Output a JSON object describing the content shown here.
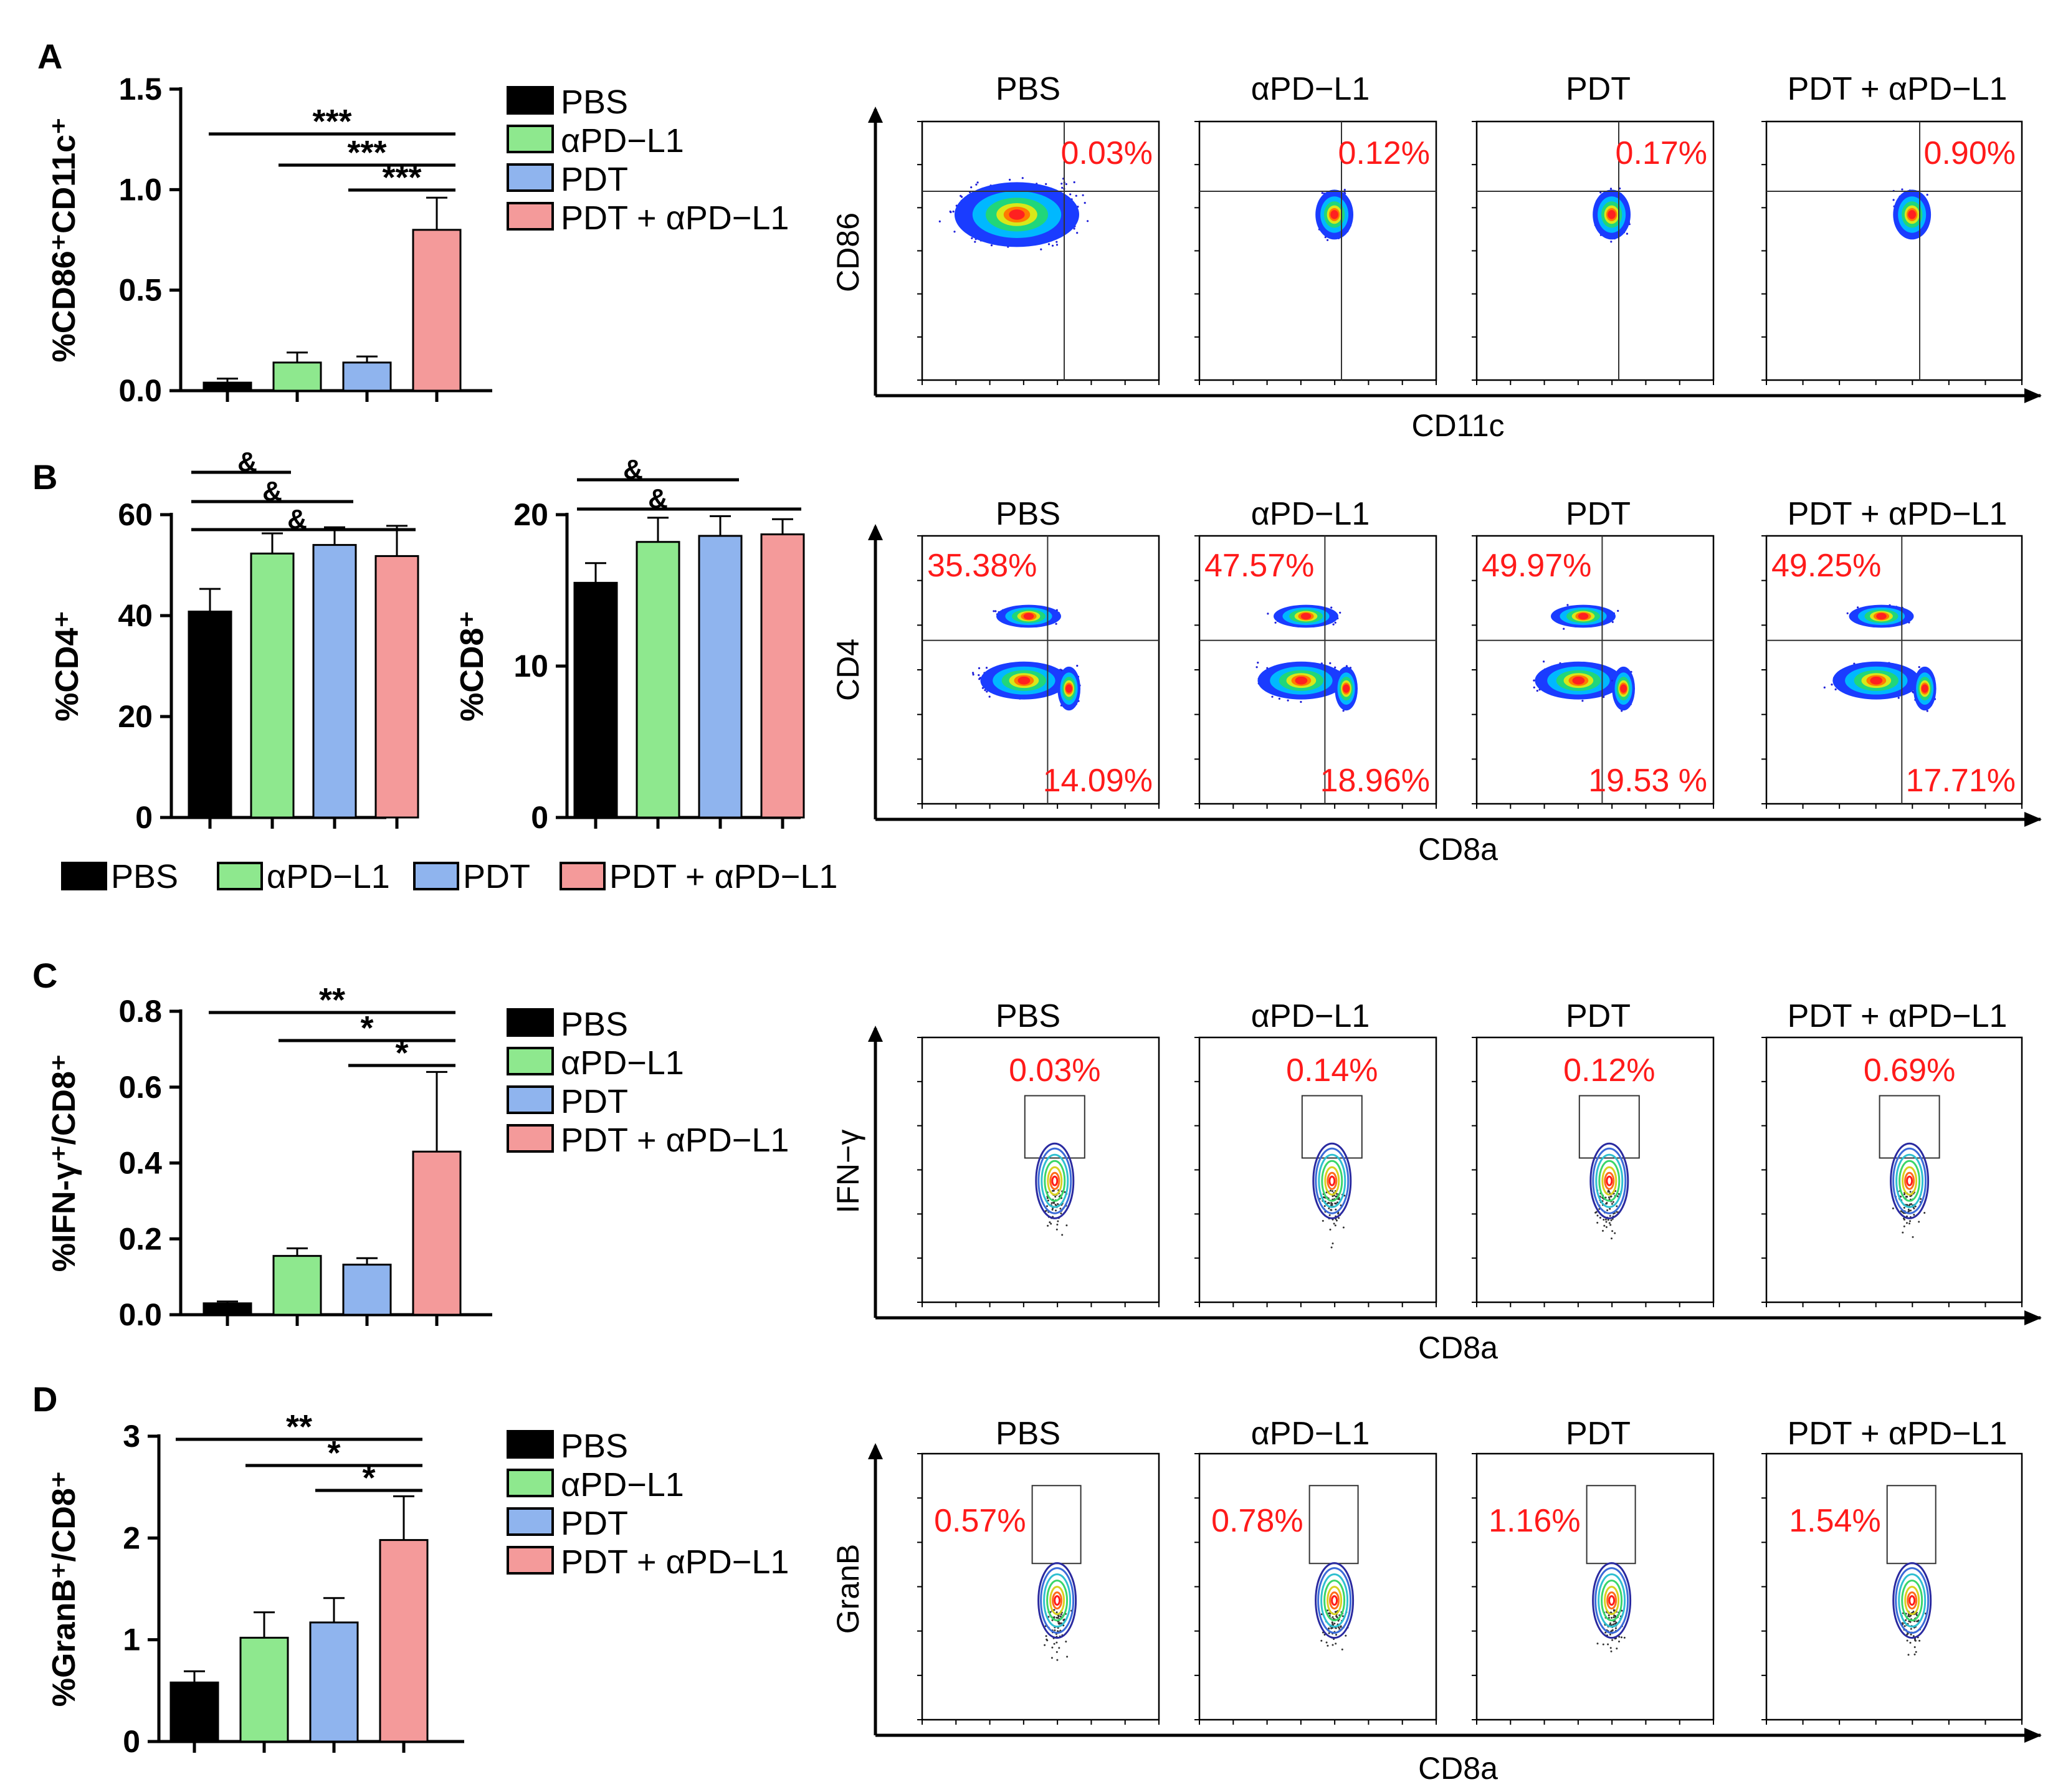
{
  "colors": {
    "PBS": "#000000",
    "aPDL1": "#8ee88e",
    "PDT": "#8fb4ee",
    "combo": "#f49a9a",
    "pct": "#ff1a1a"
  },
  "chart_data": [
    {
      "id": "A",
      "type": "bar",
      "panel_label": "A",
      "ylabel": "%CD86⁺CD11c⁺",
      "ylim": [
        0,
        1.5
      ],
      "yticks": [
        "0.0",
        "0.5",
        "1.0",
        "1.5"
      ],
      "categories": [
        "PBS",
        "αPD−L1",
        "PDT",
        "PDT + αPD−L1"
      ],
      "values": [
        0.04,
        0.14,
        0.14,
        0.8
      ],
      "errors": [
        0.02,
        0.05,
        0.03,
        0.16
      ],
      "legend": [
        "PBS",
        "αPD−L1",
        "PDT",
        "PDT + αPD−L1"
      ],
      "significance": [
        {
          "from": 0,
          "to": 3,
          "label": "***"
        },
        {
          "from": 1,
          "to": 3,
          "label": "***"
        },
        {
          "from": 2,
          "to": 3,
          "label": "***"
        }
      ]
    },
    {
      "id": "B1",
      "type": "bar",
      "panel_label": "B",
      "ylabel": "%CD4⁺",
      "ylim": [
        0,
        60
      ],
      "yticks": [
        "0",
        "20",
        "40",
        "60"
      ],
      "categories": [
        "PBS",
        "αPD−L1",
        "PDT",
        "PDT + αPD−L1"
      ],
      "values": [
        40.8,
        52.3,
        54.0,
        51.8
      ],
      "errors": [
        4.5,
        4.0,
        3.5,
        6.0
      ],
      "significance": [
        {
          "from": 0,
          "to": 1,
          "label": "&"
        },
        {
          "from": 0,
          "to": 2,
          "label": "&"
        },
        {
          "from": 0,
          "to": 3,
          "label": "&"
        }
      ]
    },
    {
      "id": "B2",
      "type": "bar",
      "ylabel": "%CD8⁺",
      "ylim": [
        0,
        20
      ],
      "yticks": [
        "0",
        "10",
        "20"
      ],
      "categories": [
        "PBS",
        "αPD−L1",
        "PDT",
        "PDT + αPD−L1"
      ],
      "values": [
        15.5,
        18.2,
        18.6,
        18.7
      ],
      "errors": [
        1.3,
        1.6,
        1.3,
        1.0
      ],
      "legend": [
        "PBS",
        "αPD−L1",
        "PDT",
        "PDT + αPD−L1"
      ],
      "significance": [
        {
          "from": 0,
          "to": 2,
          "label": "&"
        },
        {
          "from": 0,
          "to": 3,
          "label": "&"
        }
      ]
    },
    {
      "id": "C",
      "type": "bar",
      "panel_label": "C",
      "ylabel": "%IFN-γ⁺/CD8⁺",
      "ylim": [
        0,
        0.8
      ],
      "yticks": [
        "0.0",
        "0.2",
        "0.4",
        "0.6",
        "0.8"
      ],
      "categories": [
        "PBS",
        "αPD−L1",
        "PDT",
        "PDT + αPD−L1"
      ],
      "values": [
        0.03,
        0.155,
        0.132,
        0.43
      ],
      "errors": [
        0.005,
        0.02,
        0.017,
        0.21
      ],
      "legend": [
        "PBS",
        "αPD−L1",
        "PDT",
        "PDT + αPD−L1"
      ],
      "significance": [
        {
          "from": 0,
          "to": 3,
          "label": "**"
        },
        {
          "from": 1,
          "to": 3,
          "label": "*"
        },
        {
          "from": 2,
          "to": 3,
          "label": "*"
        }
      ]
    },
    {
      "id": "D",
      "type": "bar",
      "panel_label": "D",
      "ylabel": "%GranB⁺/CD8⁺",
      "ylim": [
        0,
        3
      ],
      "yticks": [
        "0",
        "1",
        "2",
        "3"
      ],
      "categories": [
        "PBS",
        "αPD−L1",
        "PDT",
        "PDT + αPD−L1"
      ],
      "values": [
        0.58,
        1.02,
        1.17,
        1.98
      ],
      "errors": [
        0.11,
        0.25,
        0.24,
        0.43
      ],
      "legend": [
        "PBS",
        "αPD−L1",
        "PDT",
        "PDT + αPD−L1"
      ],
      "significance": [
        {
          "from": 0,
          "to": 3,
          "label": "**"
        },
        {
          "from": 1,
          "to": 3,
          "label": "*"
        },
        {
          "from": 2,
          "to": 3,
          "label": "*"
        }
      ]
    }
  ],
  "flow": [
    {
      "id": "A",
      "type": "scatter",
      "xlabel": "CD11c",
      "ylabel": "CD86",
      "titles": [
        "PBS",
        "αPD−L1",
        "PDT",
        "PDT + αPD−L1"
      ],
      "percent": [
        "0.03%",
        "0.12%",
        "0.17%",
        "0.90%"
      ]
    },
    {
      "id": "B",
      "type": "scatter",
      "xlabel": "CD8a",
      "ylabel": "CD4",
      "titles": [
        "PBS",
        "αPD−L1",
        "PDT",
        "PDT + αPD−L1"
      ],
      "percent_top": [
        "35.38%",
        "47.57%",
        "49.97%",
        "49.25%"
      ],
      "percent_bottom": [
        "14.09%",
        "18.96%",
        "19.53 %",
        "17.71%"
      ]
    },
    {
      "id": "C",
      "type": "scatter",
      "xlabel": "CD8a",
      "ylabel": "IFN−γ",
      "titles": [
        "PBS",
        "αPD−L1",
        "PDT",
        "PDT + αPD−L1"
      ],
      "percent": [
        "0.03%",
        "0.14%",
        "0.12%",
        "0.69%"
      ]
    },
    {
      "id": "D",
      "type": "scatter",
      "xlabel": "CD8a",
      "ylabel": "GranB",
      "titles": [
        "PBS",
        "αPD−L1",
        "PDT",
        "PDT + αPD−L1"
      ],
      "percent": [
        "0.57%",
        "0.78%",
        "1.16%",
        "1.54%"
      ]
    }
  ]
}
